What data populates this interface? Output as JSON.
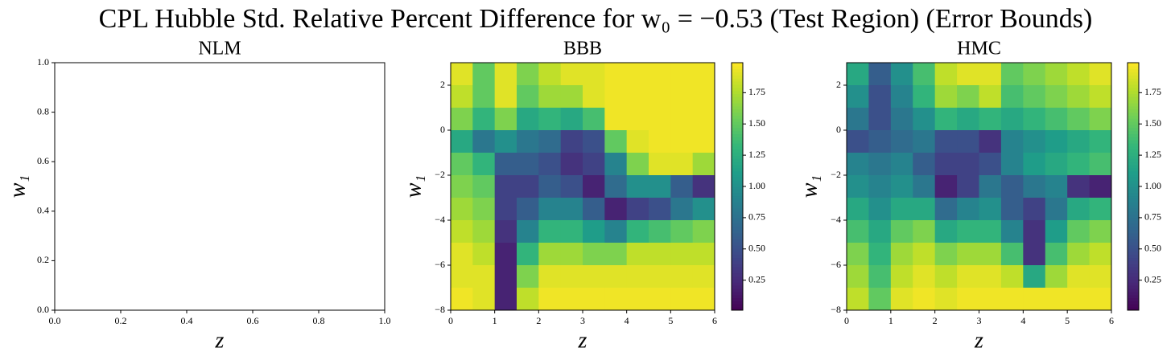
{
  "title": "CPL Hubble Std. Relative Percent Difference for w₀ = −0.53 (Test Region) (Error Bounds)",
  "chart_data": [
    {
      "type": "heatmap",
      "title": "NLM",
      "xlabel": "z",
      "ylabel": "w₁",
      "xlim": [
        0,
        1
      ],
      "ylim": [
        0,
        1
      ],
      "xticks": [
        {
          "value": 0,
          "label": "0.0"
        },
        {
          "value": 0.2,
          "label": "0.2"
        },
        {
          "value": 0.4,
          "label": "0.4"
        },
        {
          "value": 0.6,
          "label": "0.6"
        },
        {
          "value": 0.8,
          "label": "0.8"
        },
        {
          "value": 1,
          "label": "1.0"
        }
      ],
      "yticks": [
        {
          "value": 0,
          "label": "0.0"
        },
        {
          "value": 0.2,
          "label": "0.2"
        },
        {
          "value": 0.4,
          "label": "0.4"
        },
        {
          "value": 0.6,
          "label": "0.6"
        },
        {
          "value": 0.8,
          "label": "0.8"
        },
        {
          "value": 1,
          "label": "1.0"
        }
      ]
    },
    {
      "type": "heatmap",
      "title": "BBB",
      "xlabel": "z",
      "ylabel": "w₁",
      "colormap": "viridis",
      "xlim": [
        0,
        6
      ],
      "ylim": [
        -8,
        3
      ],
      "xticks": [
        0,
        1,
        2,
        3,
        4,
        5,
        6
      ],
      "yticks": [
        {
          "value": -8,
          "label": "−8"
        },
        {
          "value": -6,
          "label": "−6"
        },
        {
          "value": -4,
          "label": "−4"
        },
        {
          "value": -2,
          "label": "−2"
        },
        0,
        2
      ],
      "clim": [
        0.01,
        1.99
      ],
      "cticks": [
        0.25,
        {
          "value": 0.5,
          "label": "0.50"
        },
        0.75,
        {
          "value": 1,
          "label": "1.00"
        },
        1.25,
        {
          "value": 1.5,
          "label": "1.50"
        },
        1.75
      ],
      "x": [
        0.25,
        0.75,
        1.25,
        1.75,
        2.25,
        2.75,
        3.25,
        3.75,
        4.25,
        4.75,
        5.25,
        5.75
      ],
      "y": [
        2.5,
        1.5,
        0.5,
        -0.5,
        -1.5,
        -2.5,
        -3.5,
        -4.5,
        -5.5,
        -6.5,
        -7.5
      ],
      "z": [
        [
          1.9,
          1.5,
          1.9,
          1.6,
          1.8,
          1.9,
          1.9,
          1.95,
          1.95,
          1.95,
          1.95,
          1.95
        ],
        [
          1.8,
          1.5,
          1.9,
          1.5,
          1.7,
          1.7,
          1.9,
          1.95,
          1.95,
          1.95,
          1.95,
          1.95
        ],
        [
          1.6,
          1.3,
          1.6,
          1.2,
          1.3,
          1.2,
          1.4,
          1.95,
          1.95,
          1.95,
          1.95,
          1.95
        ],
        [
          1.2,
          0.8,
          1.0,
          0.8,
          0.7,
          0.4,
          0.5,
          1.5,
          1.9,
          1.95,
          1.95,
          1.95
        ],
        [
          1.5,
          1.3,
          0.6,
          0.6,
          0.5,
          0.3,
          0.4,
          0.9,
          1.6,
          1.9,
          1.9,
          1.7
        ],
        [
          1.6,
          1.5,
          0.4,
          0.4,
          0.6,
          0.5,
          0.2,
          0.7,
          1.0,
          1.0,
          0.6,
          0.3
        ],
        [
          1.7,
          1.6,
          0.4,
          0.6,
          0.9,
          0.9,
          0.6,
          0.2,
          0.4,
          0.5,
          0.8,
          1.0
        ],
        [
          1.8,
          1.7,
          0.3,
          0.9,
          1.3,
          1.3,
          1.1,
          0.9,
          1.3,
          1.4,
          1.5,
          1.6
        ],
        [
          1.9,
          1.8,
          0.2,
          1.3,
          1.7,
          1.7,
          1.6,
          1.6,
          1.8,
          1.8,
          1.8,
          1.8
        ],
        [
          1.9,
          1.9,
          0.2,
          1.6,
          1.9,
          1.9,
          1.9,
          1.9,
          1.9,
          1.9,
          1.9,
          1.9
        ],
        [
          1.95,
          1.9,
          0.2,
          1.8,
          1.95,
          1.95,
          1.95,
          1.95,
          1.95,
          1.95,
          1.95,
          1.95
        ]
      ]
    },
    {
      "type": "heatmap",
      "title": "HMC",
      "xlabel": "z",
      "ylabel": "w₁",
      "colormap": "viridis",
      "xlim": [
        0,
        6
      ],
      "ylim": [
        -8,
        3
      ],
      "xticks": [
        0,
        1,
        2,
        3,
        4,
        5,
        6
      ],
      "yticks": [
        {
          "value": -8,
          "label": "−8"
        },
        {
          "value": -6,
          "label": "−6"
        },
        {
          "value": -4,
          "label": "−4"
        },
        {
          "value": -2,
          "label": "−2"
        },
        0,
        2
      ],
      "clim": [
        0.01,
        1.99
      ],
      "cticks": [
        0.25,
        {
          "value": 0.5,
          "label": "0.50"
        },
        0.75,
        {
          "value": 1,
          "label": "1.00"
        },
        1.25,
        {
          "value": 1.5,
          "label": "1.50"
        },
        1.75
      ],
      "x": [
        0.25,
        0.75,
        1.25,
        1.75,
        2.25,
        2.75,
        3.25,
        3.75,
        4.25,
        4.75,
        5.25,
        5.75
      ],
      "y": [
        2.5,
        1.5,
        0.5,
        -0.5,
        -1.5,
        -2.5,
        -3.5,
        -4.5,
        -5.5,
        -6.5,
        -7.5
      ],
      "z": [
        [
          1.2,
          0.6,
          1.0,
          1.4,
          1.8,
          1.9,
          1.9,
          1.5,
          1.6,
          1.7,
          1.8,
          1.9
        ],
        [
          1.0,
          0.5,
          0.9,
          1.3,
          1.7,
          1.6,
          1.8,
          1.4,
          1.5,
          1.6,
          1.7,
          1.8
        ],
        [
          0.8,
          0.5,
          0.8,
          1.0,
          1.3,
          1.2,
          1.3,
          1.2,
          1.3,
          1.4,
          1.5,
          1.6
        ],
        [
          0.5,
          0.6,
          0.7,
          0.8,
          0.5,
          0.5,
          0.3,
          0.9,
          1.0,
          1.1,
          1.2,
          1.3
        ],
        [
          0.9,
          0.8,
          0.9,
          0.6,
          0.4,
          0.4,
          0.5,
          0.9,
          1.1,
          1.2,
          1.3,
          1.4
        ],
        [
          1.0,
          0.9,
          1.0,
          0.8,
          0.2,
          0.4,
          0.8,
          0.6,
          0.8,
          0.9,
          0.3,
          0.2
        ],
        [
          1.2,
          1.0,
          1.2,
          1.2,
          0.7,
          0.9,
          1.0,
          0.6,
          0.4,
          0.8,
          1.2,
          1.3
        ],
        [
          1.4,
          1.2,
          1.5,
          1.6,
          1.2,
          1.3,
          1.3,
          0.9,
          0.3,
          1.1,
          1.5,
          1.6
        ],
        [
          1.6,
          1.3,
          1.7,
          1.8,
          1.6,
          1.7,
          1.7,
          1.4,
          0.3,
          1.4,
          1.7,
          1.8
        ],
        [
          1.7,
          1.4,
          1.8,
          1.9,
          1.8,
          1.9,
          1.9,
          1.8,
          1.2,
          1.7,
          1.9,
          1.9
        ],
        [
          1.8,
          1.5,
          1.9,
          1.95,
          1.9,
          1.95,
          1.95,
          1.95,
          1.95,
          1.95,
          1.95,
          1.95
        ]
      ]
    }
  ]
}
